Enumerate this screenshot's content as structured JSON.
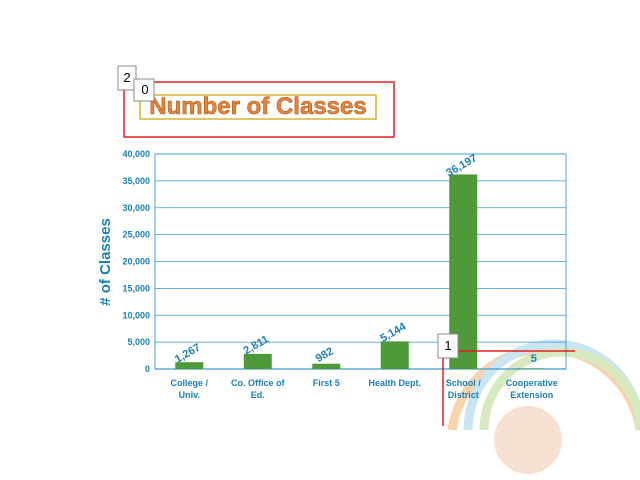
{
  "chart_data": {
    "type": "bar",
    "title": "Number of Classes",
    "xlabel": "",
    "ylabel": "# of Classes",
    "categories": [
      [
        "College /",
        "Univ."
      ],
      [
        "Co. Office of",
        "Ed."
      ],
      [
        "First 5"
      ],
      [
        "Health Dept."
      ],
      [
        "School /",
        "District"
      ],
      [
        "Cooperative",
        "Extension"
      ]
    ],
    "values": [
      1267,
      2811,
      982,
      5144,
      36197,
      5
    ],
    "value_labels": [
      "1,267",
      "2,811",
      "982",
      "5,144",
      "36,197",
      "5"
    ],
    "yticks": [
      "0",
      "5,000",
      "10,000",
      "15,000",
      "20,000",
      "25,000",
      "30,000",
      "35,000",
      "40,000"
    ],
    "ylim": [
      0,
      40000
    ],
    "grid": true,
    "legend": "none",
    "bar_color": "#4e9a3a",
    "axis_color": "#3a9ad0",
    "text_color": "#1a7fb5",
    "title_color": "#e8843a"
  },
  "annotations": [
    {
      "id": "0",
      "label": "0",
      "color": "#c8a000"
    },
    {
      "id": "1",
      "label": "1",
      "color": "#e02020"
    },
    {
      "id": "2",
      "label": "2",
      "color": "#e02020"
    }
  ]
}
